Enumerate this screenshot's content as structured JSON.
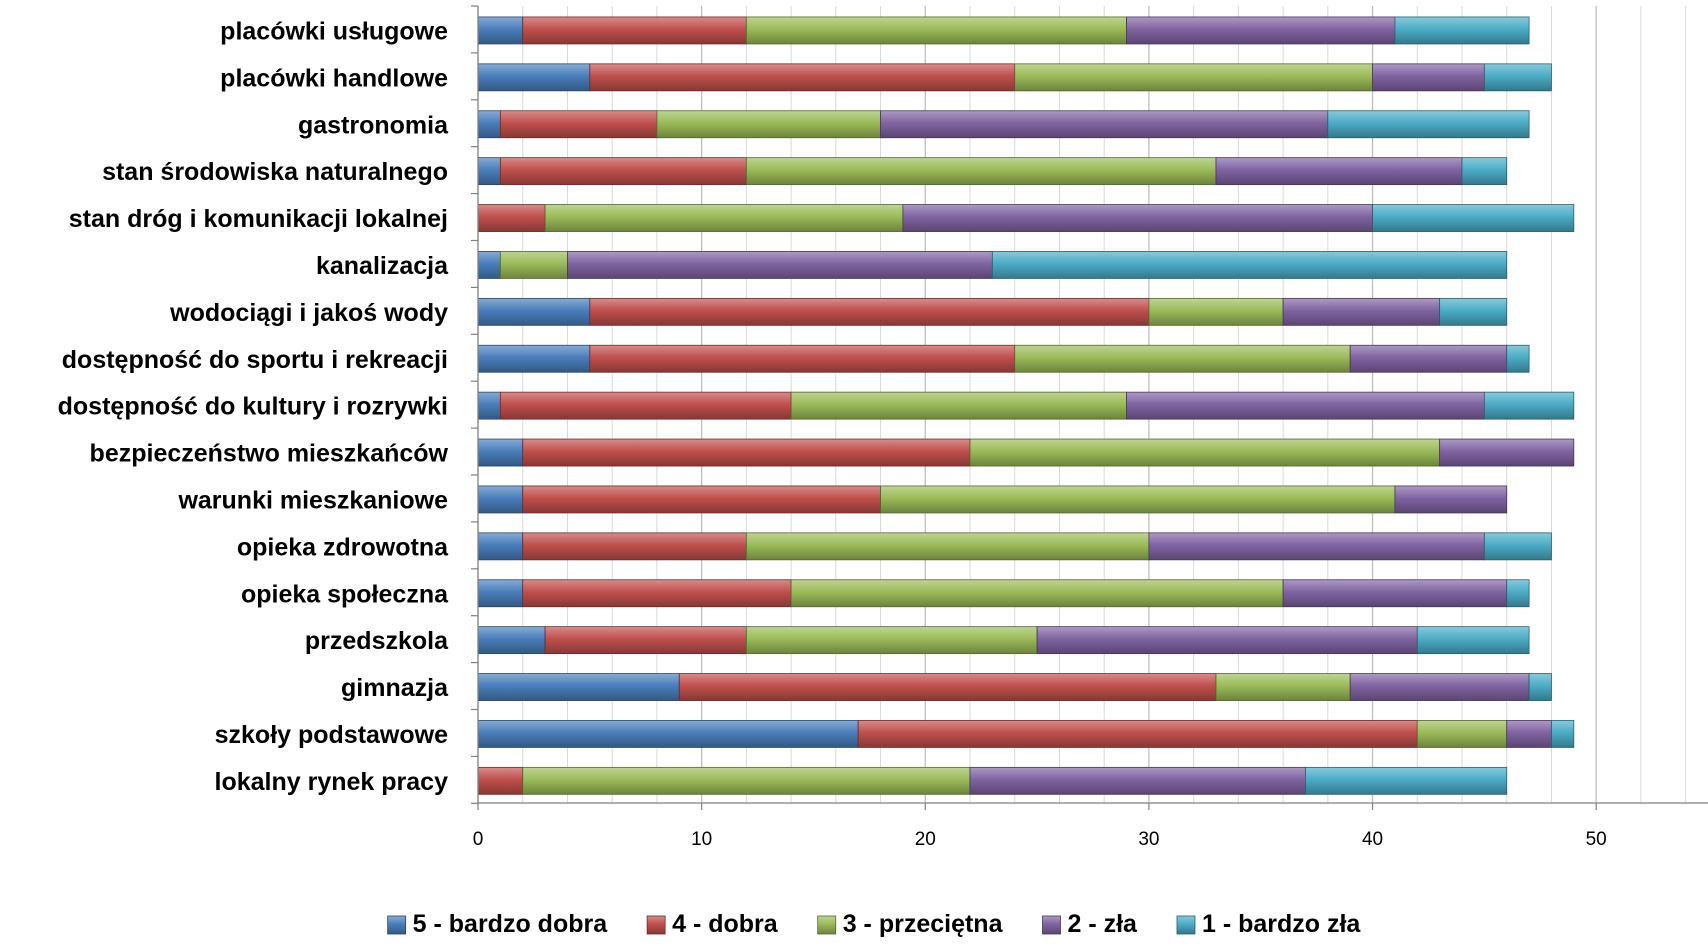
{
  "chart_data": {
    "type": "bar",
    "orientation": "horizontal",
    "stacked": true,
    "title": "",
    "xlabel": "",
    "ylabel": "",
    "xlim": [
      0,
      55
    ],
    "xticks": [
      0,
      10,
      20,
      30,
      40,
      50
    ],
    "grid": true,
    "legend_position": "bottom",
    "categories": [
      "placówki usługowe",
      "placówki handlowe",
      "gastronomia",
      "stan środowiska naturalnego",
      "stan dróg i komunikacji lokalnej",
      "kanalizacja",
      "wodociągi i jakoś wody",
      "dostępność do sportu i rekreacji",
      "dostępność do kultury i rozrywki",
      "bezpieczeństwo mieszkańców",
      "warunki mieszkaniowe",
      "opieka zdrowotna",
      "opieka społeczna",
      "przedszkola",
      "gimnazja",
      "szkoły podstawowe",
      "lokalny rynek pracy"
    ],
    "series": [
      {
        "name": "5 - bardzo dobra",
        "color": "#4a7ebb",
        "values": [
          2,
          5,
          1,
          1,
          0,
          1,
          5,
          5,
          1,
          2,
          2,
          2,
          2,
          3,
          9,
          17,
          0
        ]
      },
      {
        "name": "4 - dobra",
        "color": "#c0504d",
        "values": [
          10,
          19,
          7,
          11,
          3,
          0,
          25,
          19,
          13,
          20,
          16,
          10,
          12,
          9,
          24,
          25,
          2
        ]
      },
      {
        "name": "3 - przeciętna",
        "color": "#9bbb59",
        "values": [
          17,
          16,
          10,
          21,
          16,
          3,
          6,
          15,
          15,
          21,
          23,
          18,
          22,
          13,
          6,
          4,
          20
        ]
      },
      {
        "name": "2 - zła",
        "color": "#8064a2",
        "values": [
          12,
          5,
          20,
          11,
          21,
          19,
          7,
          7,
          16,
          6,
          5,
          15,
          10,
          17,
          8,
          2,
          15
        ]
      },
      {
        "name": "1 - bardzo zła",
        "color": "#4bacc6",
        "values": [
          6,
          3,
          9,
          2,
          9,
          23,
          3,
          1,
          4,
          0,
          0,
          3,
          1,
          5,
          1,
          1,
          9
        ]
      }
    ]
  }
}
